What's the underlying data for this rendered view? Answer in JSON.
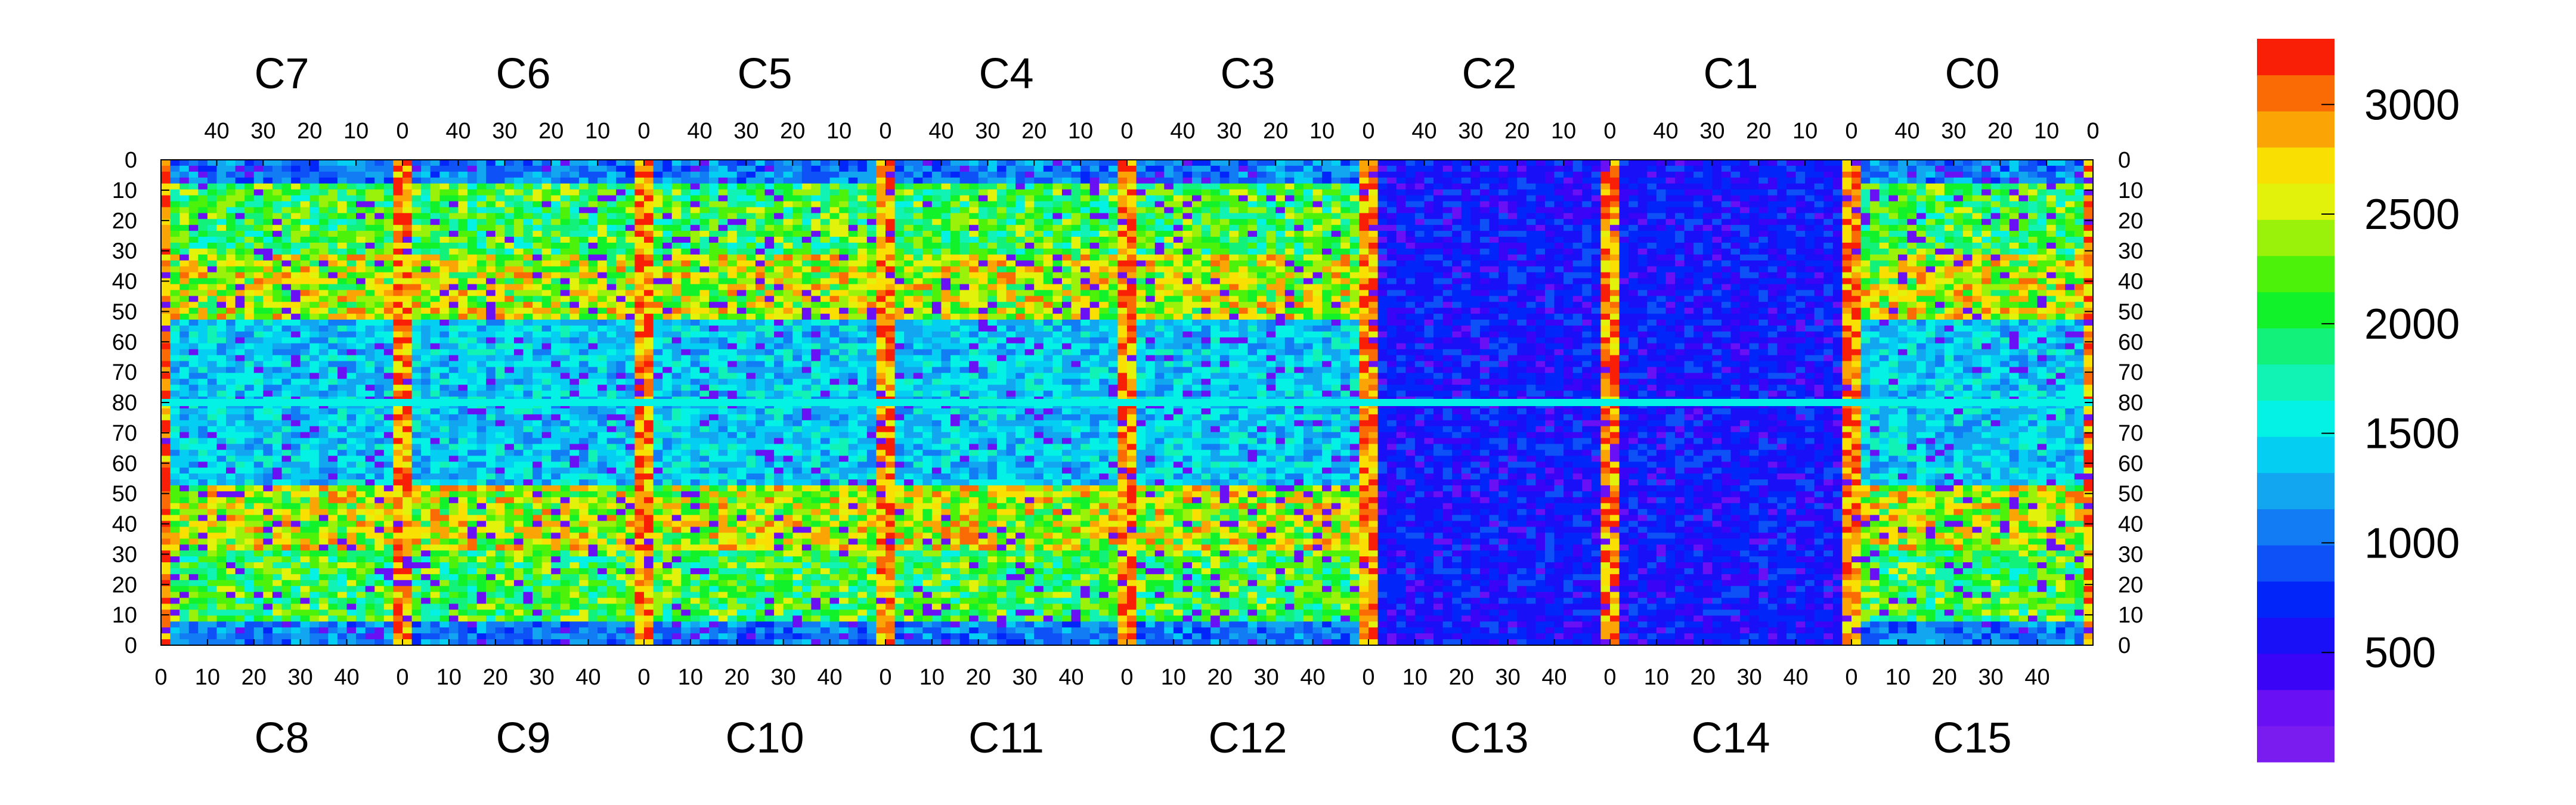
{
  "chart_data": {
    "type": "heatmap",
    "title": "",
    "xlabel": "",
    "ylabel": "",
    "chip_width": 52,
    "top_row_chips": [
      "C7",
      "C6",
      "C5",
      "C4",
      "C3",
      "C2",
      "C1",
      "C0"
    ],
    "bottom_row_chips": [
      "C8",
      "C9",
      "C10",
      "C11",
      "C12",
      "C13",
      "C14",
      "C15"
    ],
    "x_ticks_top": [
      "40",
      "30",
      "20",
      "10",
      "0"
    ],
    "x_ticks_bottom": [
      "0",
      "10",
      "20",
      "30",
      "40"
    ],
    "y_ticks_top_half": [
      "0",
      "10",
      "20",
      "30",
      "40",
      "50",
      "60",
      "70",
      "80"
    ],
    "y_ticks_bottom_half": [
      "70",
      "60",
      "50",
      "40",
      "30",
      "20",
      "10",
      "0"
    ],
    "colorbar": {
      "min": 0,
      "max": 3300,
      "ticks": [
        "500",
        "1000",
        "1500",
        "2000",
        "2500",
        "3000"
      ],
      "tick_values": [
        500,
        1000,
        1500,
        2000,
        2500,
        3000
      ],
      "levels": 20,
      "colors": [
        "#7a1bf0",
        "#6a10f4",
        "#3a05f6",
        "#1a10f8",
        "#0226f9",
        "#0e52f7",
        "#127cf5",
        "#12a6f1",
        "#04cef2",
        "#04f2e6",
        "#11f2b5",
        "#12f27b",
        "#12f22a",
        "#4df20a",
        "#9af20a",
        "#e2f20a",
        "#f9e002",
        "#faa505",
        "#fa6a05",
        "#f91e06"
      ]
    },
    "notes": "Hitmap of 16 chips (8 top inverted, 8 bottom); high-occupancy red columns at chip edges; chip C13/C14 largely low with white (empty) pixels."
  }
}
